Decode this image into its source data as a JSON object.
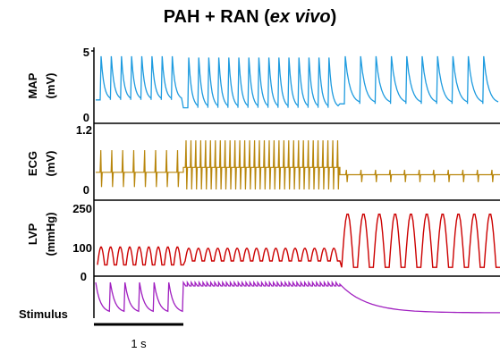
{
  "title": {
    "prefix": "PAH + RAN (",
    "italic": "ex vivo",
    "suffix": ")"
  },
  "chart_data": {
    "type": "line",
    "title": "PAH + RAN (ex vivo)",
    "time_scale_bar": {
      "label": "1 s",
      "seconds": 1
    },
    "panels": [
      {
        "id": "map",
        "label": "MAP",
        "unit": "(mV)",
        "ylim": [
          0,
          5
        ],
        "ticks": [
          "5",
          "0"
        ],
        "color": "#1E9BDF",
        "segments": [
          {
            "beats": 8,
            "peak": 4.6,
            "trough": 1.3,
            "decay": "monoexp"
          },
          {
            "beats": 15,
            "peak": 4.5,
            "trough": 0.7,
            "decay": "monoexp"
          },
          {
            "beats": 10,
            "peak": 4.6,
            "trough": 1.0,
            "decay": "monoexp"
          }
        ]
      },
      {
        "id": "ecg",
        "label": "ECG",
        "unit": "(mV)",
        "ylim": [
          0,
          1.2
        ],
        "ticks": [
          "1.2",
          "0"
        ],
        "color": "#B8860B",
        "segments": [
          {
            "beats": 8,
            "baseline": 0.35,
            "spike_high": 0.8,
            "spike_low": 0.05
          },
          {
            "beats": 32,
            "baseline": 0.45,
            "spike_high": 1.0,
            "spike_low": 0.0
          },
          {
            "beats": 11,
            "baseline": 0.3,
            "spike_high": 0.4,
            "spike_low": 0.15
          }
        ]
      },
      {
        "id": "lvp",
        "label": "LVP",
        "unit": "(mmHg)",
        "ylim": [
          0,
          250
        ],
        "ticks": [
          "250",
          "100",
          "0"
        ],
        "color": "#CC0000",
        "segments": [
          {
            "beats": 9,
            "peak": 100,
            "trough": 30
          },
          {
            "beats": 16,
            "peak": 95,
            "trough": 45
          },
          {
            "beats": 10,
            "peak": 230,
            "trough": 20
          }
        ]
      },
      {
        "id": "stim",
        "label": "Stimulus",
        "unit": "",
        "color": "#A020C0",
        "segments": [
          {
            "pulses": 6,
            "type": "discrete"
          },
          {
            "pulses": 40,
            "type": "rapid"
          },
          {
            "type": "off"
          }
        ]
      }
    ]
  }
}
